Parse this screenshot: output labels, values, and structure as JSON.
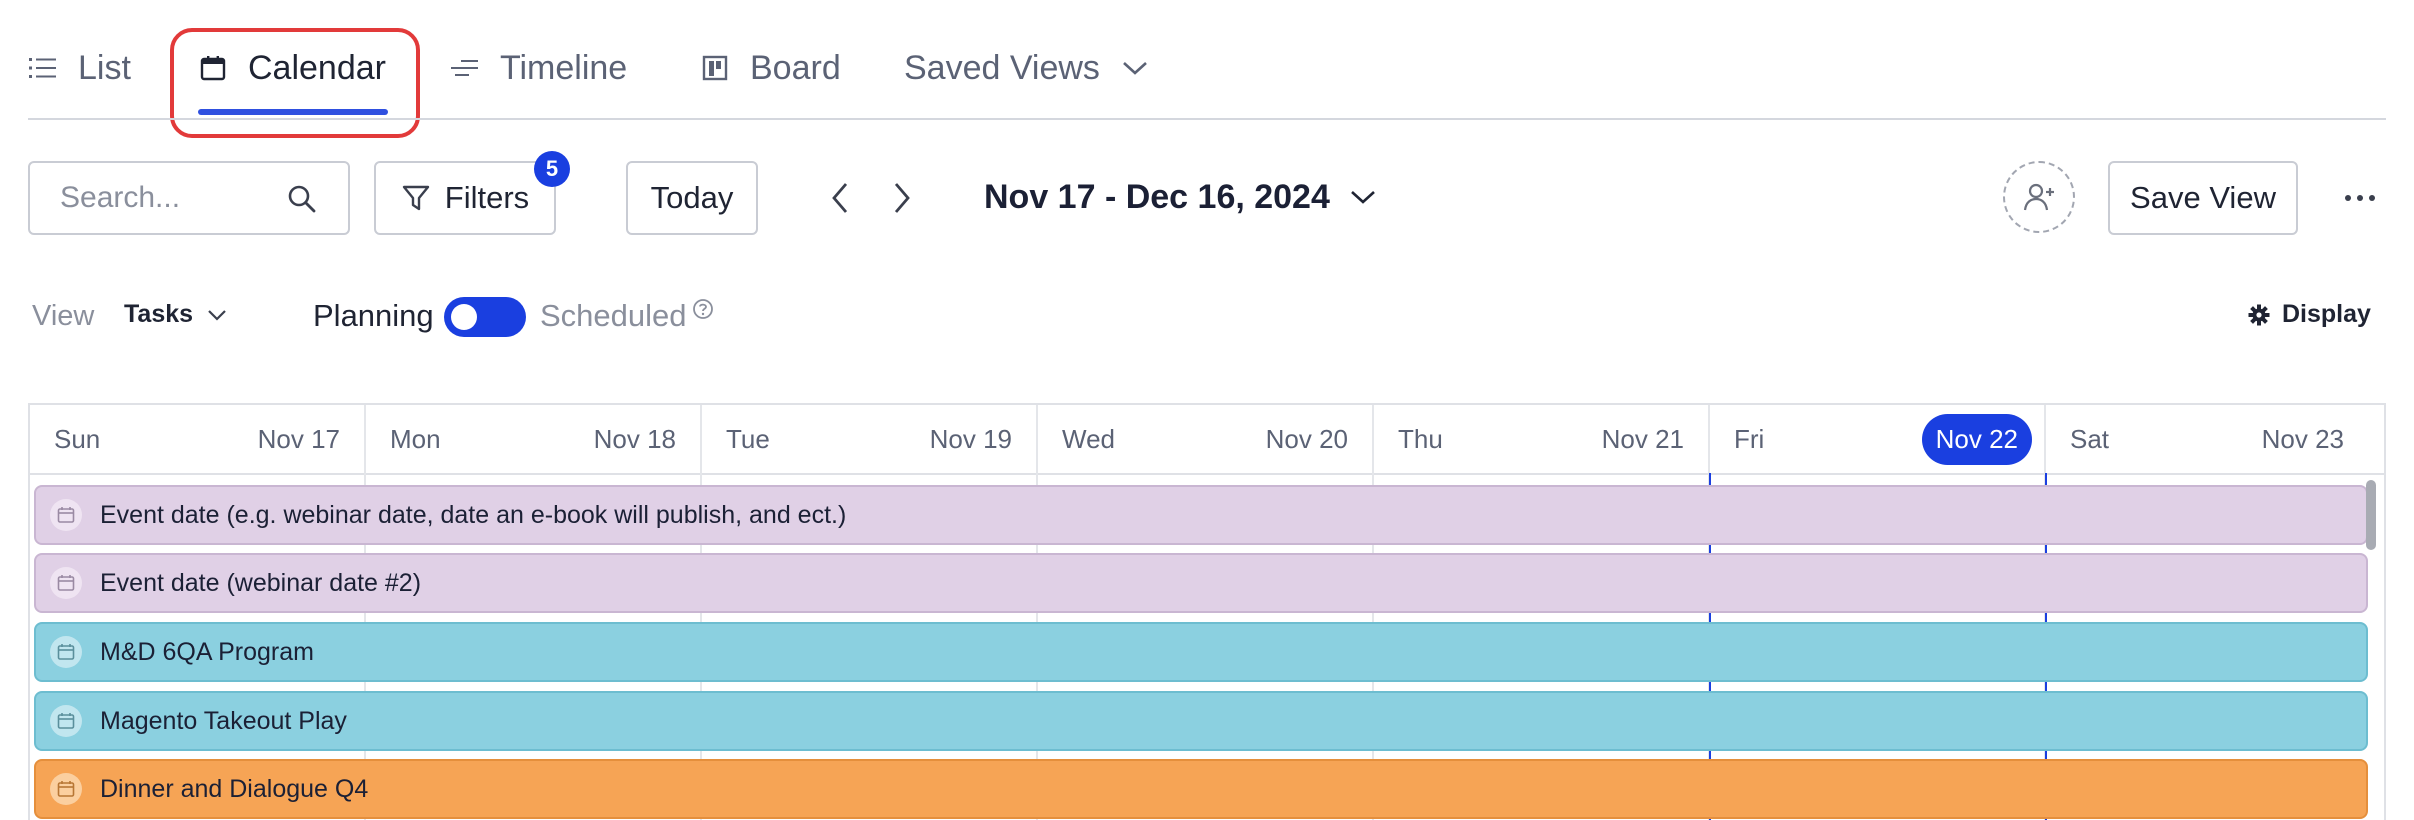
{
  "tabs": [
    {
      "label": "List",
      "icon": "list-icon",
      "active": false
    },
    {
      "label": "Calendar",
      "icon": "calendar-icon",
      "active": true
    },
    {
      "label": "Timeline",
      "icon": "timeline-icon",
      "active": false
    },
    {
      "label": "Board",
      "icon": "board-icon",
      "active": false
    },
    {
      "label": "Saved Views",
      "icon": "chevron-down-icon",
      "active": false
    }
  ],
  "toolbar": {
    "search_placeholder": "Search...",
    "search_value": "",
    "filters_label": "Filters",
    "filters_count": "5",
    "today_label": "Today",
    "date_range": "Nov 17 - Dec 16, 2024",
    "save_view_label": "Save View"
  },
  "options": {
    "view_label": "View",
    "view_value": "Tasks",
    "planning_label": "Planning",
    "scheduled_label": "Scheduled",
    "toggle_on": true,
    "display_label": "Display"
  },
  "calendar": {
    "days": [
      {
        "name": "Sun",
        "date": "Nov 17",
        "today": false
      },
      {
        "name": "Mon",
        "date": "Nov 18",
        "today": false
      },
      {
        "name": "Tue",
        "date": "Nov 19",
        "today": false
      },
      {
        "name": "Wed",
        "date": "Nov 20",
        "today": false
      },
      {
        "name": "Thu",
        "date": "Nov 21",
        "today": false
      },
      {
        "name": "Fri",
        "date": "Nov 22",
        "today": true
      },
      {
        "name": "Sat",
        "date": "Nov 23",
        "today": false
      }
    ],
    "events": [
      {
        "title": "Event date (e.g. webinar date, date an e-book will publish, and ect.)",
        "color": "#e0d0e6",
        "border": "#c9b6d2",
        "icon_bg": "#efe4f2"
      },
      {
        "title": "Event date (webinar date #2)",
        "color": "#e0d0e6",
        "border": "#c9b6d2",
        "icon_bg": "#efe4f2"
      },
      {
        "title": "M&D 6QA Program",
        "color": "#8bd0e0",
        "border": "#6dbdd0",
        "icon_bg": "#c1e6ef"
      },
      {
        "title": "Magento Takeout Play",
        "color": "#8bd0e0",
        "border": "#6dbdd0",
        "icon_bg": "#c1e6ef"
      },
      {
        "title": "Dinner and Dialogue Q4",
        "color": "#f6a455",
        "border": "#e58f3c",
        "icon_bg": "#fbcf9f"
      }
    ]
  },
  "colors": {
    "accent": "#1a3fe0",
    "highlight": "#e23a3a"
  }
}
